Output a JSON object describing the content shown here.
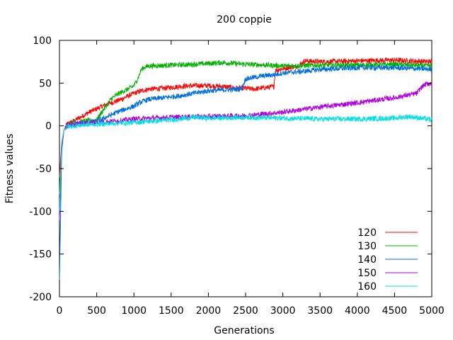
{
  "chart_data": {
    "type": "line",
    "title": "200 coppie",
    "xlabel": "Generations",
    "ylabel": "Fitness values",
    "xlim": [
      0,
      5000
    ],
    "ylim": [
      -200,
      100
    ],
    "xticks": [
      0,
      500,
      1000,
      1500,
      2000,
      2500,
      3000,
      3500,
      4000,
      4500,
      5000
    ],
    "yticks": [
      -200,
      -150,
      -100,
      -50,
      0,
      50,
      100
    ],
    "grid": false,
    "legend_position": "bottom-right",
    "series": [
      {
        "name": "120",
        "color": "#ff0000",
        "x": [
          0,
          30,
          60,
          100,
          200,
          300,
          400,
          500,
          600,
          700,
          800,
          900,
          1000,
          1100,
          1200,
          1400,
          1600,
          1800,
          2000,
          2200,
          2400,
          2500,
          2600,
          2800,
          2880,
          2900,
          3000,
          3200,
          3300,
          3500,
          4000,
          4500,
          4700,
          5000
        ],
        "y": [
          -60,
          -20,
          -5,
          2,
          6,
          11,
          16,
          20,
          24,
          27,
          30,
          34,
          38,
          41,
          43,
          44,
          46,
          47,
          47,
          46,
          44,
          44,
          43,
          45,
          46,
          65,
          67,
          70,
          76,
          75,
          76,
          77,
          76,
          75
        ]
      },
      {
        "name": "130",
        "color": "#00b000",
        "x": [
          0,
          30,
          60,
          100,
          200,
          300,
          400,
          500,
          600,
          700,
          800,
          900,
          1000,
          1050,
          1100,
          1150,
          1200,
          1500,
          1800,
          2000,
          2200,
          2500,
          2800,
          3000,
          3500,
          4000,
          4500,
          5000
        ],
        "y": [
          -80,
          -25,
          -5,
          1,
          4,
          5,
          6,
          7,
          20,
          32,
          38,
          42,
          47,
          55,
          66,
          69,
          70,
          71,
          72,
          73,
          74,
          72,
          71,
          70,
          71,
          71,
          72,
          70
        ]
      },
      {
        "name": "140",
        "color": "#0070e0",
        "x": [
          0,
          30,
          60,
          100,
          200,
          300,
          400,
          500,
          600,
          700,
          800,
          900,
          1000,
          1100,
          1200,
          1400,
          1600,
          1800,
          2000,
          2200,
          2400,
          2450,
          2500,
          2700,
          2900,
          3000,
          3300,
          3500,
          4000,
          4500,
          4800,
          5000
        ],
        "y": [
          -180,
          -30,
          -5,
          0,
          2,
          3,
          4,
          5,
          9,
          13,
          17,
          20,
          23,
          28,
          31,
          33,
          35,
          38,
          41,
          42,
          43,
          44,
          55,
          58,
          60,
          62,
          64,
          66,
          68,
          68,
          67,
          66
        ]
      },
      {
        "name": "150",
        "color": "#b000e0",
        "x": [
          0,
          30,
          60,
          100,
          200,
          300,
          500,
          800,
          1000,
          1500,
          2000,
          2500,
          3000,
          3500,
          4000,
          4500,
          4800,
          4850,
          4900,
          5000
        ],
        "y": [
          -110,
          -25,
          -5,
          0,
          2,
          3,
          4,
          6,
          8,
          10,
          11,
          12,
          16,
          22,
          27,
          33,
          38,
          44,
          48,
          50
        ]
      },
      {
        "name": "160",
        "color": "#00e0e0",
        "x": [
          0,
          30,
          60,
          100,
          200,
          300,
          500,
          1000,
          1500,
          1800,
          2000,
          2500,
          3000,
          3500,
          4000,
          4500,
          4700,
          5000
        ],
        "y": [
          -100,
          -20,
          -5,
          -1,
          0,
          1,
          2,
          4,
          7,
          10,
          9,
          10,
          9,
          8,
          8,
          9,
          11,
          7
        ]
      }
    ]
  }
}
